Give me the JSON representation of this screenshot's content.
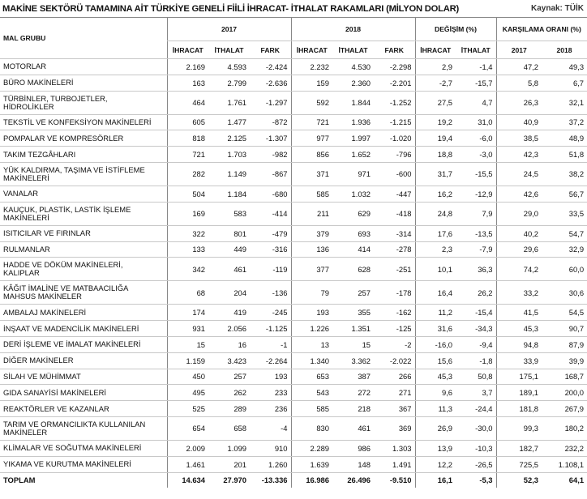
{
  "header": {
    "title": "MAKİNE SEKTÖRÜ TAMAMINA AİT TÜRKİYE GENELİ FİİLİ İHRACAT- İTHALAT RAKAMLARI (MİLYON DOLAR)",
    "source": "Kaynak: TÜİK"
  },
  "table": {
    "group_header": [
      "MAL GRUBU",
      "2017",
      "2018",
      "DEĞİŞİM (%)",
      "KARŞILAMA ORANI (%)"
    ],
    "columns": [
      "İHRACAT",
      "İTHALAT",
      "FARK",
      "İHRACAT",
      "İTHALAT",
      "FARK",
      "İHRACAT",
      "İTHALAT",
      "2017",
      "2018"
    ],
    "rows": [
      {
        "label": [
          "MOTORLAR"
        ],
        "values": [
          "2.169",
          "4.593",
          "-2.424",
          "2.232",
          "4.530",
          "-2.298",
          "2,9",
          "-1,4",
          "47,2",
          "49,3"
        ]
      },
      {
        "label": [
          "BÜRO MAKİNELERİ"
        ],
        "values": [
          "163",
          "2.799",
          "-2.636",
          "159",
          "2.360",
          "-2.201",
          "-2,7",
          "-15,7",
          "5,8",
          "6,7"
        ]
      },
      {
        "label": [
          "TÜRBİNLER, TURBOJETLER,",
          "HİDROLİKLER"
        ],
        "values": [
          "464",
          "1.761",
          "-1.297",
          "592",
          "1.844",
          "-1.252",
          "27,5",
          "4,7",
          "26,3",
          "32,1"
        ]
      },
      {
        "label": [
          "TEKSTİL VE KONFEKSİYON MAKİNELERİ"
        ],
        "values": [
          "605",
          "1.477",
          "-872",
          "721",
          "1.936",
          "-1.215",
          "19,2",
          "31,0",
          "40,9",
          "37,2"
        ]
      },
      {
        "label": [
          "POMPALAR VE KOMPRESÖRLER"
        ],
        "values": [
          "818",
          "2.125",
          "-1.307",
          "977",
          "1.997",
          "-1.020",
          "19,4",
          "-6,0",
          "38,5",
          "48,9"
        ]
      },
      {
        "label": [
          "TAKIM TEZGÂHLARI"
        ],
        "values": [
          "721",
          "1.703",
          "-982",
          "856",
          "1.652",
          "-796",
          "18,8",
          "-3,0",
          "42,3",
          "51,8"
        ]
      },
      {
        "label": [
          "YÜK KALDIRMA, TAŞIMA VE İSTİFLEME",
          "MAKİNELERİ"
        ],
        "values": [
          "282",
          "1.149",
          "-867",
          "371",
          "971",
          "-600",
          "31,7",
          "-15,5",
          "24,5",
          "38,2"
        ]
      },
      {
        "label": [
          "VANALAR"
        ],
        "values": [
          "504",
          "1.184",
          "-680",
          "585",
          "1.032",
          "-447",
          "16,2",
          "-12,9",
          "42,6",
          "56,7"
        ]
      },
      {
        "label": [
          "KAUÇUK, PLASTİK, LASTİK İŞLEME",
          "MAKİNELERİ"
        ],
        "values": [
          "169",
          "583",
          "-414",
          "211",
          "629",
          "-418",
          "24,8",
          "7,9",
          "29,0",
          "33,5"
        ]
      },
      {
        "label": [
          "ISITICILAR VE FIRINLAR"
        ],
        "values": [
          "322",
          "801",
          "-479",
          "379",
          "693",
          "-314",
          "17,6",
          "-13,5",
          "40,2",
          "54,7"
        ]
      },
      {
        "label": [
          "RULMANLAR"
        ],
        "values": [
          "133",
          "449",
          "-316",
          "136",
          "414",
          "-278",
          "2,3",
          "-7,9",
          "29,6",
          "32,9"
        ]
      },
      {
        "label": [
          "HADDE VE DÖKÜM MAKİNELERİ,",
          "KALIPLAR"
        ],
        "values": [
          "342",
          "461",
          "-119",
          "377",
          "628",
          "-251",
          "10,1",
          "36,3",
          "74,2",
          "60,0"
        ]
      },
      {
        "label": [
          "KÂĞIT İMALİNE VE MATBAACILIĞA",
          "MAHSUS MAKİNELER"
        ],
        "values": [
          "68",
          "204",
          "-136",
          "79",
          "257",
          "-178",
          "16,4",
          "26,2",
          "33,2",
          "30,6"
        ]
      },
      {
        "label": [
          "AMBALAJ MAKİNELERİ"
        ],
        "values": [
          "174",
          "419",
          "-245",
          "193",
          "355",
          "-162",
          "11,2",
          "-15,4",
          "41,5",
          "54,5"
        ]
      },
      {
        "label": [
          "İNŞAAT VE MADENCİLİK MAKİNELERİ"
        ],
        "values": [
          "931",
          "2.056",
          "-1.125",
          "1.226",
          "1.351",
          "-125",
          "31,6",
          "-34,3",
          "45,3",
          "90,7"
        ]
      },
      {
        "label": [
          "DERİ İŞLEME VE İMALAT MAKİNELERİ"
        ],
        "values": [
          "15",
          "16",
          "-1",
          "13",
          "15",
          "-2",
          "-16,0",
          "-9,4",
          "94,8",
          "87,9"
        ]
      },
      {
        "label": [
          "DİĞER MAKİNELER"
        ],
        "values": [
          "1.159",
          "3.423",
          "-2.264",
          "1.340",
          "3.362",
          "-2.022",
          "15,6",
          "-1,8",
          "33,9",
          "39,9"
        ]
      },
      {
        "label": [
          "SİLAH VE MÜHİMMAT"
        ],
        "values": [
          "450",
          "257",
          "193",
          "653",
          "387",
          "266",
          "45,3",
          "50,8",
          "175,1",
          "168,7"
        ]
      },
      {
        "label": [
          "GIDA SANAYİSİ MAKİNELERİ"
        ],
        "values": [
          "495",
          "262",
          "233",
          "543",
          "272",
          "271",
          "9,6",
          "3,7",
          "189,1",
          "200,0"
        ]
      },
      {
        "label": [
          "REAKTÖRLER VE KAZANLAR"
        ],
        "values": [
          "525",
          "289",
          "236",
          "585",
          "218",
          "367",
          "11,3",
          "-24,4",
          "181,8",
          "267,9"
        ]
      },
      {
        "label": [
          "TARIM VE ORMANCILIKTA KULLANILAN",
          "MAKİNELER"
        ],
        "values": [
          "654",
          "658",
          "-4",
          "830",
          "461",
          "369",
          "26,9",
          "-30,0",
          "99,3",
          "180,2"
        ]
      },
      {
        "label": [
          "KLİMALAR VE SOĞUTMA MAKİNELERİ"
        ],
        "values": [
          "2.009",
          "1.099",
          "910",
          "2.289",
          "986",
          "1.303",
          "13,9",
          "-10,3",
          "182,7",
          "232,2"
        ]
      },
      {
        "label": [
          "YIKAMA VE KURUTMA MAKİNELERİ"
        ],
        "values": [
          "1.461",
          "201",
          "1.260",
          "1.639",
          "148",
          "1.491",
          "12,2",
          "-26,5",
          "725,5",
          "1.108,1"
        ]
      },
      {
        "label": [
          "TOPLAM"
        ],
        "values": [
          "14.634",
          "27.970",
          "-13.336",
          "16.986",
          "26.496",
          "-9.510",
          "16,1",
          "-5,3",
          "52,3",
          "64,1"
        ]
      }
    ]
  }
}
